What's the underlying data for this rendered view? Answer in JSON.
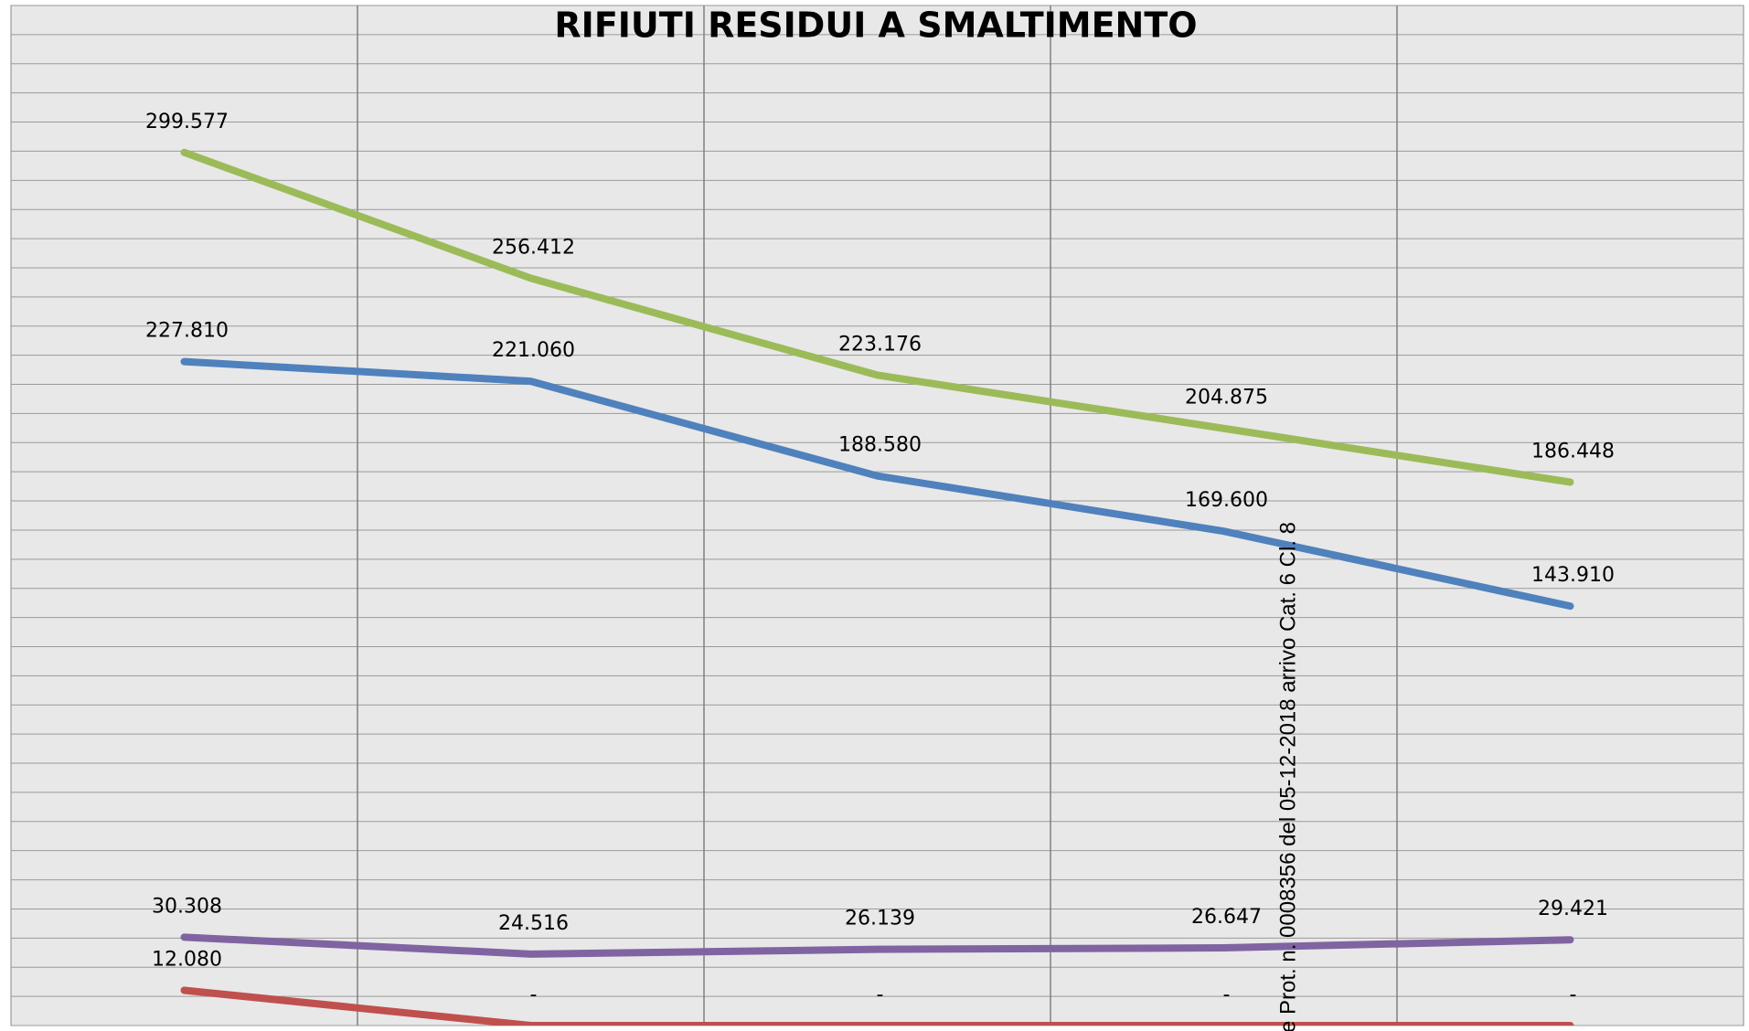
{
  "chart_data": {
    "type": "line",
    "title": "RIFIUTI RESIDUI A SMALTIMENTO",
    "annotation": "e Prot. n. 0008356 del 05-12-2018 arrivo Cat. 6 Cl. 8",
    "categories": [
      null,
      null,
      null,
      null,
      null
    ],
    "ylim": [
      0,
      350000
    ],
    "yticks": [
      0,
      10000,
      20000,
      30000,
      40000,
      50000,
      60000,
      70000,
      80000,
      90000,
      100000,
      110000,
      120000,
      130000,
      140000,
      150000,
      160000,
      170000,
      180000,
      190000,
      200000,
      210000,
      220000,
      230000,
      240000,
      250000,
      260000,
      270000,
      280000,
      290000,
      300000,
      310000,
      320000,
      330000,
      340000,
      350000
    ],
    "grid": true,
    "series": [
      {
        "color": "#9bbb59",
        "values": [
          299577,
          256412,
          223176,
          204875,
          186448
        ],
        "value_labels": [
          "299.577",
          "256.412",
          "223.176",
          "204.875",
          "186.448"
        ]
      },
      {
        "color": "#4f81bd",
        "values": [
          227810,
          221060,
          188580,
          169600,
          143910
        ],
        "value_labels": [
          "227.810",
          "221.060",
          "188.580",
          "169.600",
          "143.910"
        ]
      },
      {
        "color": "#8064a2",
        "values": [
          30308,
          24516,
          26139,
          26647,
          29421
        ],
        "value_labels": [
          "30.308",
          "24.516",
          "26.139",
          "26.647",
          "29.421"
        ]
      },
      {
        "color": "#c0504d",
        "values": [
          12080,
          0,
          0,
          0,
          0
        ],
        "value_labels": [
          "12.080",
          "-",
          "-",
          "-",
          "-"
        ]
      }
    ]
  }
}
